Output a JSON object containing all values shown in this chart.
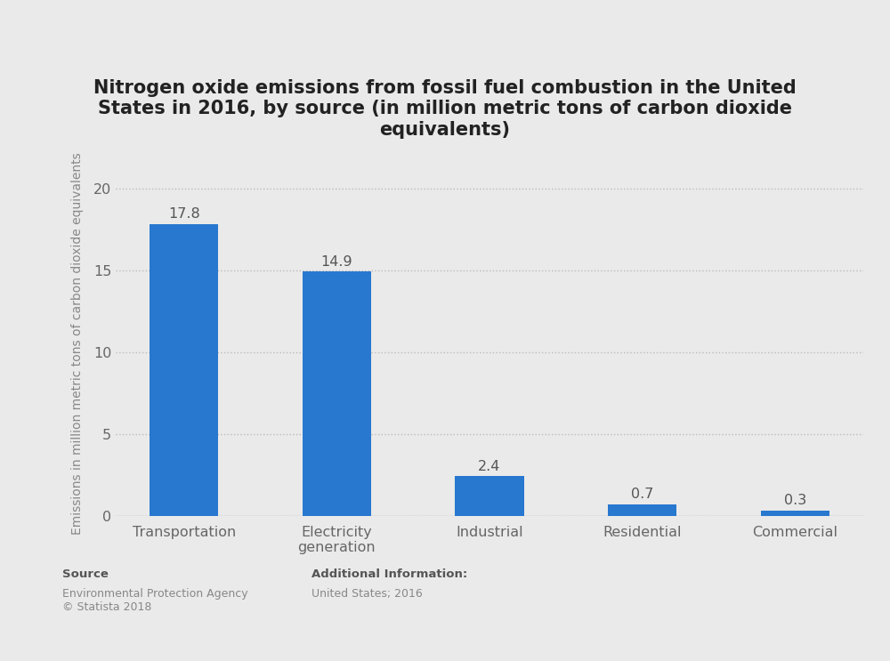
{
  "title": "Nitrogen oxide emissions from fossil fuel combustion in the United\nStates in 2016, by source (in million metric tons of carbon dioxide\nequivalents)",
  "categories": [
    "Transportation",
    "Electricity\ngeneration",
    "Industrial",
    "Residential",
    "Commercial"
  ],
  "values": [
    17.8,
    14.9,
    2.4,
    0.7,
    0.3
  ],
  "bar_color": "#2878d0",
  "ylabel": "Emissions in million metric tons of carbon dioxide equivalents",
  "ylim": [
    0,
    21
  ],
  "yticks": [
    0,
    5,
    10,
    15,
    20
  ],
  "background_color": "#eaeaea",
  "plot_bg_color": "#eaeaea",
  "grid_color": "#bbbbbb",
  "title_fontsize": 15,
  "label_fontsize": 10,
  "tick_fontsize": 11.5,
  "value_label_fontsize": 11.5,
  "source_label": "Source",
  "source_body": "Environmental Protection Agency\n© Statista 2018",
  "additional_label": "Additional Information:",
  "additional_body": "United States; 2016",
  "bar_width": 0.45
}
